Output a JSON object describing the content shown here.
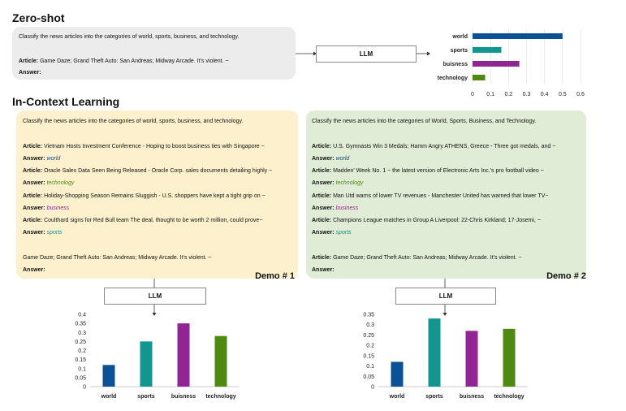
{
  "colors": {
    "world": "#0a5196",
    "sports": "#12968f",
    "buisness": "#912593",
    "technology": "#4e8a11",
    "zeroshot_bg": "#ececec",
    "demo1_bg": "#fdf1cd",
    "demo2_bg": "#e1ecd6"
  },
  "zeroshot": {
    "heading": "Zero-shot",
    "instruction": "Classify the news articles into the categories of world, sports, business, and technology.",
    "article_label": "Article:",
    "article_text": "Game Daze; Grand Theft Auto: San Andreas; Midway Arcade. It's violent. ~",
    "answer_label": "Answer:",
    "llm_label": "LLM"
  },
  "icl": {
    "heading": "In-Context Learning",
    "llm_label": "LLM",
    "demo1": {
      "label": "Demo # 1",
      "instruction": "Classify the news articles into the categories of world, sports, business, and technology.",
      "examples": [
        {
          "article": "Vietnam Hosts Investment Conference - Hoping to boost business ties with Singapore ~",
          "answer": "world"
        },
        {
          "article": "Oracle Sales Data Seen Being Released - Oracle Corp. sales documents detailing  highly ~",
          "answer": "technology"
        },
        {
          "article": "Holiday-Shopping Season Remains Sluggish - U.S. shoppers have kept a tight grip on ~",
          "answer": "business"
        },
        {
          "article": "Coulthard signs for Red Bull team The deal, thought to be worth 2 million, could  prove~",
          "answer": "sports"
        }
      ],
      "query_article": "Game Daze; Grand Theft Auto: San Andreas; Midway Arcade. It's violent. ~",
      "article_label": "Article:",
      "answer_label": "Answer:"
    },
    "demo2": {
      "label": "Demo # 2",
      "instruction": "Classify the news articles into the categories of World, Sports, Business, and Technology.",
      "examples": [
        {
          "article": "U.S. Gymnasts Win 3 Medals; Hamm Angry ATHENS, Greece - Three got medals, and ~",
          "answer": "world"
        },
        {
          "article": "Madden' Week No. 1 ~ the latest version of Electronic Arts Inc.'s pro football video ~",
          "answer": "technology"
        },
        {
          "article": "Man Utd warns of lower TV revenues - Manchester United has warned that lower TV~",
          "answer": "business"
        },
        {
          "article": "Champions League matches in Group A Liverpool: 22-Chris Kirkland; 17-Josemi, ~",
          "answer": "sports"
        }
      ],
      "query_article": "Game Daze; Grand Theft Auto: San Andreas; Midway Arcade. It's violent. ~",
      "article_label": "Article:",
      "answer_label": "Answer:"
    }
  },
  "chart_data": [
    {
      "type": "bar",
      "orientation": "horizontal",
      "categories": [
        "world",
        "sports",
        "buisness",
        "technology"
      ],
      "values": [
        0.5,
        0.16,
        0.26,
        0.07
      ],
      "xlim": [
        0,
        0.6
      ],
      "ticks": [
        "0",
        "0.1",
        "0.2",
        "0.3",
        "0.4",
        "0.5",
        "0.6"
      ],
      "grid": true
    },
    {
      "type": "bar",
      "categories": [
        "world",
        "sports",
        "buisness",
        "technology"
      ],
      "values": [
        0.12,
        0.25,
        0.35,
        0.28
      ],
      "ylim": [
        0,
        0.4
      ],
      "ticks": [
        "0",
        "0.05",
        "0.1",
        "0.15",
        "0.2",
        "0.25",
        "0.3",
        "0.35",
        "0.4"
      ]
    },
    {
      "type": "bar",
      "categories": [
        "world",
        "sports",
        "buisness",
        "technology"
      ],
      "values": [
        0.12,
        0.33,
        0.27,
        0.28
      ],
      "ylim": [
        0,
        0.35
      ],
      "ticks": [
        "0",
        "0.05",
        "0.1",
        "0.15",
        "0.2",
        "0.25",
        "0.3",
        "0.35"
      ]
    }
  ]
}
